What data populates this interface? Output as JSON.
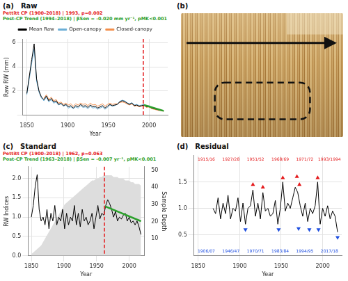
{
  "chart_data": [
    {
      "type": "line",
      "panel": "(a)",
      "title": "Raw",
      "annotations": [
        {
          "text": "Pettitt CP (1900–2018) | 1993, p=0.002",
          "color": "#e41a1c"
        },
        {
          "text": "Post-CP Trend (1994–2018) | βSen = -0.020 mm yr⁻¹, pMK<0.001",
          "color": "#2ca02c"
        }
      ],
      "x_label": "Year",
      "y_label": "Raw RW (mm)",
      "x": [
        1850,
        1853,
        1856,
        1859,
        1862,
        1865,
        1868,
        1871,
        1874,
        1877,
        1880,
        1883,
        1886,
        1889,
        1892,
        1895,
        1898,
        1901,
        1904,
        1907,
        1910,
        1913,
        1916,
        1919,
        1922,
        1925,
        1928,
        1931,
        1934,
        1937,
        1940,
        1943,
        1946,
        1949,
        1952,
        1955,
        1958,
        1961,
        1964,
        1967,
        1970,
        1973,
        1976,
        1979,
        1982,
        1985,
        1988,
        1991,
        1994,
        1997,
        2000,
        2003,
        2006,
        2009,
        2012,
        2015,
        2018
      ],
      "series": [
        {
          "name": "Mean Raw",
          "color": "#000000",
          "values": [
            1.8,
            3.2,
            4.6,
            5.9,
            3.0,
            2.0,
            1.5,
            1.3,
            1.6,
            1.2,
            1.4,
            1.1,
            1.2,
            0.9,
            1.0,
            0.8,
            0.9,
            0.7,
            0.8,
            0.6,
            0.8,
            0.7,
            0.9,
            0.75,
            0.8,
            0.65,
            0.85,
            0.7,
            0.75,
            0.6,
            0.7,
            0.8,
            0.6,
            0.75,
            0.9,
            0.8,
            0.85,
            0.9,
            1.1,
            1.2,
            1.15,
            1.0,
            0.9,
            1.0,
            0.8,
            0.85,
            0.75,
            0.8,
            0.85,
            0.7,
            0.75,
            0.6,
            0.55,
            0.5,
            0.45,
            0.4,
            0.35
          ]
        },
        {
          "name": "Open-canopy",
          "color": "#6baed6",
          "values": [
            1.7,
            3.0,
            4.3,
            5.5,
            2.8,
            1.9,
            1.4,
            1.2,
            1.5,
            1.1,
            1.3,
            1.0,
            1.1,
            0.85,
            0.95,
            0.75,
            0.85,
            0.6,
            0.7,
            0.55,
            0.7,
            0.6,
            0.8,
            0.65,
            0.7,
            0.55,
            0.75,
            0.6,
            0.65,
            0.5,
            0.6,
            0.7,
            0.5,
            0.65,
            0.85,
            0.75,
            0.8,
            0.9,
            1.15,
            1.25,
            1.2,
            1.05,
            0.95,
            1.05,
            0.85,
            0.9,
            0.8,
            0.85,
            0.9,
            0.75,
            0.8,
            0.65,
            0.6,
            0.55,
            0.5,
            0.42,
            0.35
          ]
        },
        {
          "name": "Closed-canopy",
          "color": "#f28e4b",
          "values": [
            null,
            null,
            null,
            null,
            null,
            null,
            null,
            1.4,
            1.7,
            1.3,
            1.5,
            1.2,
            1.3,
            1.0,
            1.1,
            0.9,
            1.0,
            0.85,
            0.95,
            0.75,
            0.95,
            0.85,
            1.0,
            0.9,
            0.95,
            0.8,
            1.0,
            0.85,
            0.9,
            0.75,
            0.85,
            0.95,
            0.75,
            0.9,
            1.0,
            0.9,
            0.95,
            0.95,
            1.05,
            1.1,
            1.05,
            0.95,
            0.85,
            0.95,
            0.75,
            0.8,
            0.7,
            0.75,
            0.8,
            0.65,
            0.7,
            0.55,
            0.5,
            0.45,
            0.4,
            0.38,
            0.33
          ]
        }
      ],
      "trend": {
        "color": "#2ca02c",
        "x": [
          1994,
          2018
        ],
        "values": [
          0.85,
          0.37
        ]
      },
      "changepoint": {
        "x": 1993,
        "color": "#e41a1c",
        "line_style": "dashed"
      },
      "xlim": [
        1845,
        2023
      ],
      "xticks": [
        1850,
        1900,
        1950,
        2000
      ],
      "ylim": [
        0,
        6.3
      ],
      "yticks": [
        0,
        2,
        4,
        6
      ],
      "grid": true,
      "legend": "top"
    },
    {
      "type": "line",
      "panel": "(c)",
      "title": "Standard",
      "annotations": [
        {
          "text": "Pettitt CP (1900–2018) | 1962, p=0.063",
          "color": "#e41a1c"
        },
        {
          "text": "Post-CP Trend (1963–2018) | βSen = -0.007 yr⁻¹, pMK<0.001",
          "color": "#2ca02c"
        }
      ],
      "x_label": "Year",
      "y_label": "RW Indices",
      "y2_label": "Sample Depth",
      "x": [
        1850,
        1853,
        1856,
        1859,
        1862,
        1865,
        1868,
        1871,
        1874,
        1877,
        1880,
        1883,
        1886,
        1889,
        1892,
        1895,
        1898,
        1901,
        1904,
        1907,
        1910,
        1913,
        1916,
        1919,
        1922,
        1925,
        1928,
        1931,
        1934,
        1937,
        1940,
        1943,
        1946,
        1949,
        1952,
        1955,
        1958,
        1961,
        1964,
        1967,
        1970,
        1973,
        1976,
        1979,
        1982,
        1985,
        1988,
        1991,
        1994,
        1997,
        2000,
        2003,
        2006,
        2009,
        2012,
        2015,
        2018
      ],
      "series": [
        {
          "type": "area",
          "axis": "y2",
          "color": "#dddddd",
          "values": [
            1,
            2,
            3,
            4,
            5,
            6,
            8,
            10,
            12,
            14,
            16,
            18,
            20,
            22,
            24,
            26,
            28,
            30,
            31,
            32,
            33,
            34,
            35,
            36,
            37,
            38,
            39,
            40,
            41,
            42,
            43,
            44,
            44,
            45,
            45,
            46,
            46,
            47,
            47,
            47,
            47,
            47,
            46,
            46,
            46,
            45,
            45,
            45,
            44,
            44,
            44,
            43,
            43,
            42,
            42,
            42,
            41
          ]
        },
        {
          "type": "line",
          "color": "#000000",
          "values": [
            1.0,
            1.3,
            1.8,
            2.1,
            1.2,
            0.9,
            1.0,
            0.8,
            1.2,
            0.7,
            1.1,
            0.9,
            1.3,
            0.8,
            1.0,
            0.9,
            1.2,
            0.7,
            1.1,
            0.8,
            1.0,
            0.9,
            1.3,
            0.8,
            1.1,
            0.75,
            1.2,
            0.9,
            1.0,
            0.8,
            0.9,
            1.1,
            0.7,
            1.0,
            1.3,
            0.95,
            1.1,
            1.05,
            1.3,
            1.45,
            1.35,
            1.2,
            1.0,
            1.15,
            0.9,
            1.0,
            0.95,
            1.05,
            1.1,
            0.9,
            1.0,
            0.85,
            0.9,
            0.8,
            0.9,
            0.75,
            0.55
          ]
        }
      ],
      "trend": {
        "color": "#2ca02c",
        "x": [
          1963,
          2018
        ],
        "values": [
          1.28,
          0.895
        ]
      },
      "changepoint": {
        "x": 1962,
        "color": "#e41a1c",
        "line_style": "dashed"
      },
      "xlim": [
        1845,
        2023
      ],
      "xticks": [
        1850,
        1900,
        1950,
        2000
      ],
      "ylim": [
        0,
        2.3
      ],
      "yticks": [
        {
          "value": 0,
          "label": "0.0"
        },
        {
          "value": 0.5,
          "label": "0.5"
        },
        {
          "value": 1,
          "label": "1.0"
        },
        {
          "value": 1.5,
          "label": "1.5"
        },
        {
          "value": 2,
          "label": "2.0"
        }
      ],
      "y2lim": [
        0,
        52
      ],
      "y2ticks": [
        0,
        10,
        20,
        30,
        40,
        50
      ],
      "grid": true
    },
    {
      "type": "line",
      "panel": "(d)",
      "title": "Residual",
      "x_label": "Year",
      "x": [
        1850,
        1853,
        1856,
        1859,
        1862,
        1865,
        1868,
        1871,
        1874,
        1877,
        1880,
        1883,
        1886,
        1889,
        1892,
        1895,
        1898,
        1901,
        1904,
        1907,
        1910,
        1913,
        1916,
        1919,
        1922,
        1925,
        1928,
        1931,
        1934,
        1937,
        1940,
        1943,
        1946,
        1949,
        1952,
        1955,
        1958,
        1961,
        1964,
        1967,
        1970,
        1973,
        1976,
        1979,
        1982,
        1985,
        1988,
        1991,
        1994,
        1997,
        2000,
        2003,
        2006,
        2009,
        2012,
        2015,
        2018
      ],
      "series": [
        {
          "type": "line",
          "color": "#000000",
          "values": [
            null,
            null,
            null,
            null,
            null,
            null,
            1.0,
            0.9,
            1.2,
            0.8,
            1.1,
            0.9,
            1.25,
            0.8,
            1.0,
            0.95,
            1.2,
            0.75,
            1.1,
            0.7,
            1.0,
            1.05,
            1.35,
            0.85,
            1.1,
            0.8,
            1.3,
            0.95,
            1.0,
            0.85,
            0.9,
            1.15,
            0.7,
            1.0,
            1.5,
            0.95,
            1.1,
            1.0,
            1.2,
            1.4,
            1.3,
            1.05,
            0.85,
            1.1,
            0.75,
            1.0,
            0.9,
            1.05,
            1.5,
            0.7,
            1.0,
            0.85,
            1.05,
            0.8,
            0.95,
            0.85,
            0.55
          ]
        }
      ],
      "pointer_years": {
        "positive": {
          "color": "#e41a1c",
          "marker": "triangle-up",
          "x": [
            1916,
            1928,
            1952,
            1969,
            1972,
            1994
          ],
          "values": [
            1.45,
            1.4,
            1.58,
            1.6,
            1.45,
            1.58
          ],
          "labels": [
            "1915/16",
            "1927/28",
            "1951/52",
            "1968/69",
            "1971/72",
            "1993/1994"
          ]
        },
        "negative": {
          "color": "#1f4fe0",
          "marker": "triangle-down",
          "x": [
            1907,
            1947,
            1971,
            1984,
            1995,
            2018
          ],
          "values": [
            0.6,
            0.6,
            0.62,
            0.6,
            0.6,
            0.45
          ],
          "labels": [
            "1906/07",
            "1946/47",
            "1970/71",
            "1983/84",
            "1994/95",
            "2017/18"
          ]
        }
      },
      "xlim": [
        1845,
        2023
      ],
      "xticks": [
        1850,
        1900,
        1950,
        2000
      ],
      "ylim": [
        0.1,
        2.0
      ],
      "yticks": [
        {
          "value": 0.5,
          "label": "0.5"
        },
        {
          "value": 1,
          "label": "1.0"
        },
        {
          "value": 1.5,
          "label": "1.5"
        }
      ],
      "grid": true
    }
  ],
  "image_panel": {
    "panel": "(b)"
  }
}
